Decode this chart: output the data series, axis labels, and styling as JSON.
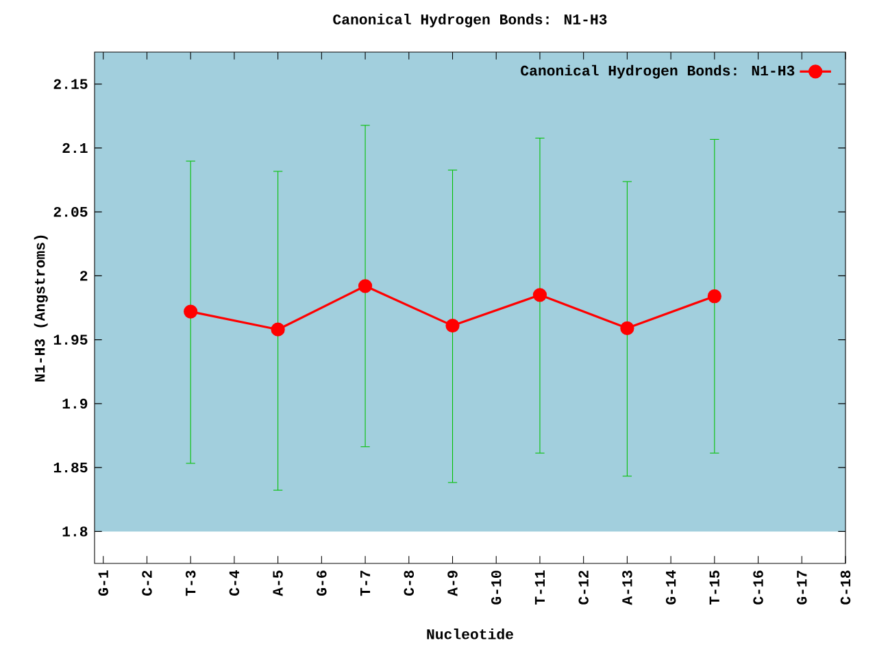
{
  "chart_data": {
    "type": "line",
    "title": "Canonical Hydrogen Bonds: N1-H3",
    "xlabel": "Nucleotide",
    "ylabel": "N1-H3 (Angstroms)",
    "categories": [
      "G-1",
      "C-2",
      "T-3",
      "C-4",
      "A-5",
      "G-6",
      "T-7",
      "C-8",
      "A-9",
      "G-10",
      "T-11",
      "C-12",
      "A-13",
      "G-14",
      "T-15",
      "C-16",
      "G-17",
      "C-18"
    ],
    "series": [
      {
        "name": "Canonical Hydrogen Bonds: N1-H3",
        "color": "#ff0000",
        "values": [
          null,
          null,
          1.972,
          null,
          1.958,
          null,
          1.992,
          null,
          1.961,
          null,
          1.985,
          null,
          1.959,
          null,
          1.984,
          null,
          null,
          null
        ],
        "errors": [
          null,
          null,
          [
            1.853,
            2.09
          ],
          null,
          [
            1.832,
            2.082
          ],
          null,
          [
            1.866,
            2.118
          ],
          null,
          [
            1.838,
            2.083
          ],
          null,
          [
            1.861,
            2.108
          ],
          null,
          [
            1.843,
            2.074
          ],
          null,
          [
            1.861,
            2.107
          ],
          null,
          null,
          null
        ]
      }
    ],
    "ylim": [
      1.775,
      2.175
    ],
    "yticks": [
      1.8,
      1.85,
      1.9,
      1.95,
      2,
      2.05,
      2.1,
      2.15
    ],
    "bands": [
      {
        "axis": "y",
        "from": 1.8,
        "to": 2.175,
        "color": "#a2cfdd"
      }
    ],
    "legend": "top right",
    "marker": "circle",
    "line_style": "solid",
    "grid": false
  }
}
